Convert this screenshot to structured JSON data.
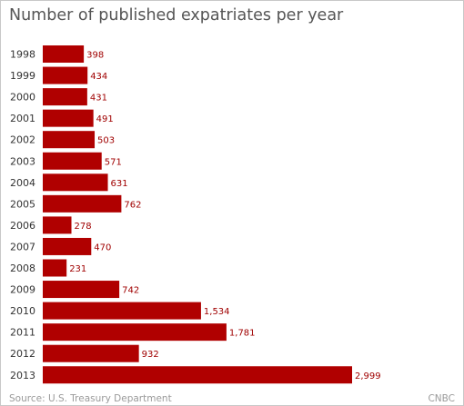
{
  "title": "Number of published expatriates per year",
  "source": "Source: U.S. Treasury Department",
  "brand": "CNBC",
  "colors": {
    "bar": "#b00000",
    "value_label": "#a00000"
  },
  "chart_data": {
    "type": "bar",
    "orientation": "horizontal",
    "title": "Number of published expatriates per year",
    "xlabel": "",
    "ylabel": "",
    "categories": [
      "1998",
      "1999",
      "2000",
      "2001",
      "2002",
      "2003",
      "2004",
      "2005",
      "2006",
      "2007",
      "2008",
      "2009",
      "2010",
      "2011",
      "2012",
      "2013"
    ],
    "values": [
      398,
      434,
      431,
      491,
      503,
      571,
      631,
      762,
      278,
      470,
      231,
      742,
      1534,
      1781,
      932,
      2999
    ],
    "value_labels": [
      "398",
      "434",
      "431",
      "491",
      "503",
      "571",
      "631",
      "762",
      "278",
      "470",
      "231",
      "742",
      "1,534",
      "1,781",
      "932",
      "2,999"
    ],
    "xlim": [
      0,
      2999
    ],
    "grid": false,
    "legend": "none"
  }
}
